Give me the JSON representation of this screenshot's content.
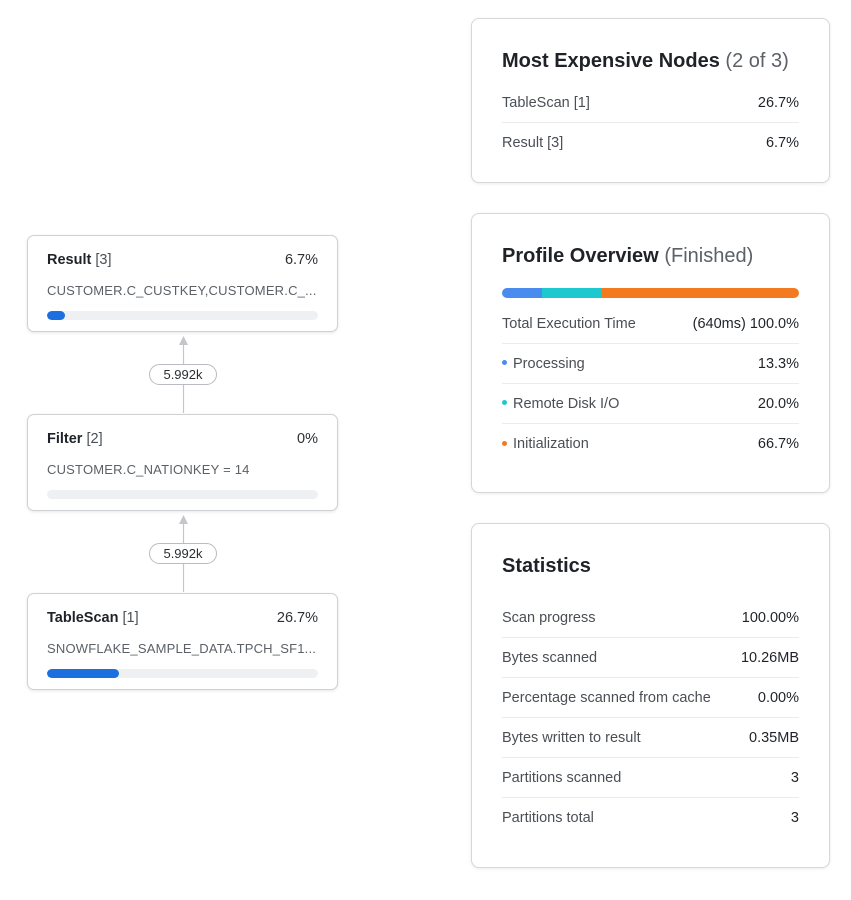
{
  "colors": {
    "processing": "#4a8bf0",
    "remote_disk_io": "#1ec8cf",
    "initialization": "#f47a20",
    "node_bar": "#1c6fdf"
  },
  "graph": {
    "nodes": [
      {
        "name": "Result",
        "index": "[3]",
        "percent": "6.7%",
        "percent_value": 6.7,
        "detail": "CUSTOMER.C_CUSTKEY,CUSTOMER.C_..."
      },
      {
        "name": "Filter",
        "index": "[2]",
        "percent": "0%",
        "percent_value": 0,
        "detail": "CUSTOMER.C_NATIONKEY = 14"
      },
      {
        "name": "TableScan",
        "index": "[1]",
        "percent": "26.7%",
        "percent_value": 26.7,
        "detail": "SNOWFLAKE_SAMPLE_DATA.TPCH_SF1..."
      }
    ],
    "edges": [
      {
        "label": "5.992k"
      },
      {
        "label": "5.992k"
      }
    ]
  },
  "expensive_nodes": {
    "title": "Most Expensive Nodes",
    "subtitle": "(2 of 3)",
    "rows": [
      {
        "label": "TableScan [1]",
        "value": "26.7%"
      },
      {
        "label": "Result [3]",
        "value": "6.7%"
      }
    ]
  },
  "profile_overview": {
    "title": "Profile Overview",
    "subtitle": "(Finished)",
    "total": {
      "label": "Total Execution Time",
      "value": "(640ms) 100.0%"
    },
    "rows": [
      {
        "label": "Processing",
        "value": "13.3%",
        "percent": 13.3,
        "color": "#4a8bf0"
      },
      {
        "label": "Remote Disk I/O",
        "value": "20.0%",
        "percent": 20.0,
        "color": "#1ec8cf"
      },
      {
        "label": "Initialization",
        "value": "66.7%",
        "percent": 66.7,
        "color": "#f47a20"
      }
    ]
  },
  "statistics": {
    "title": "Statistics",
    "rows": [
      {
        "label": "Scan progress",
        "value": "100.00%"
      },
      {
        "label": "Bytes scanned",
        "value": "10.26MB"
      },
      {
        "label": "Percentage scanned from cache",
        "value": "0.00%"
      },
      {
        "label": "Bytes written to result",
        "value": "0.35MB"
      },
      {
        "label": "Partitions scanned",
        "value": "3"
      },
      {
        "label": "Partitions total",
        "value": "3"
      }
    ]
  }
}
